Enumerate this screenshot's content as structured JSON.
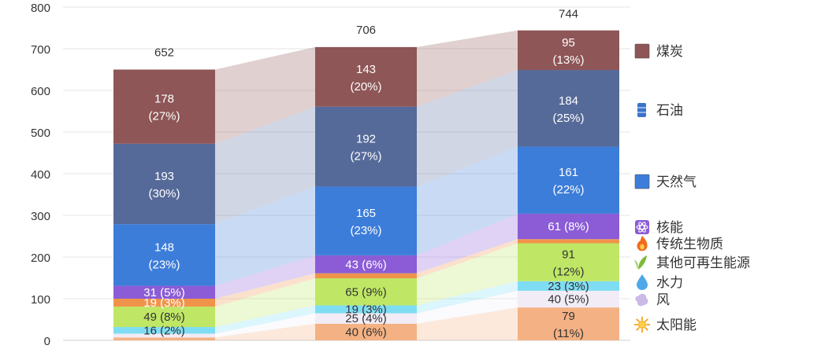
{
  "chart_data": {
    "type": "bar",
    "stacked": true,
    "with_flow_bands": true,
    "ylim": [
      0,
      800
    ],
    "yticks": [
      0,
      100,
      200,
      300,
      400,
      500,
      600,
      700,
      800
    ],
    "categories": [
      "",
      "",
      ""
    ],
    "totals": [
      652,
      706,
      744
    ],
    "series": [
      {
        "name": "太阳能",
        "icon": "sun-icon",
        "color": "#F4B183",
        "values": [
          7,
          40,
          79
        ],
        "labels": [
          "",
          "40 (6%)",
          "79\n(11%)"
        ]
      },
      {
        "name": "风",
        "icon": "wind-icon",
        "color": "#F1ECF6",
        "values": [
          9,
          25,
          40
        ],
        "labels": [
          "",
          "25 (4%)",
          "40 (5%)"
        ]
      },
      {
        "name": "水力",
        "icon": "water-drop-icon",
        "color": "#7FDDF3",
        "values": [
          16,
          19,
          23
        ],
        "labels": [
          "16 (2%)",
          "19 (3%)",
          "23 (3%)"
        ]
      },
      {
        "name": "其他可再生能源",
        "icon": "leaf-icon",
        "color": "#BFE765",
        "values": [
          49,
          65,
          91
        ],
        "labels": [
          "49 (8%)",
          "65 (9%)",
          "91\n(12%)"
        ]
      },
      {
        "name": "传统生物质",
        "icon": "fire-icon",
        "color": "#F0934A",
        "values": [
          19,
          12,
          10
        ],
        "labels": [
          "19 (3%)",
          "",
          ""
        ]
      },
      {
        "name": "核能",
        "icon": "atom-icon",
        "color": "#8B5CD6",
        "values": [
          31,
          43,
          61
        ],
        "labels": [
          "31 (5%)",
          "43 (6%)",
          "61 (8%)"
        ]
      },
      {
        "name": "天然气",
        "icon": "blue-square-icon",
        "color": "#3C7DD9",
        "values": [
          148,
          165,
          161
        ],
        "labels": [
          "148\n(23%)",
          "165\n(23%)",
          "161\n(22%)"
        ]
      },
      {
        "name": "石油",
        "icon": "oil-barrel-icon",
        "color": "#566A99",
        "values": [
          193,
          192,
          184
        ],
        "labels": [
          "193\n(30%)",
          "192\n(27%)",
          "184\n(25%)"
        ]
      },
      {
        "name": "煤炭",
        "icon": "brown-square-icon",
        "color": "#8E5656",
        "values": [
          178,
          143,
          95
        ],
        "labels": [
          "178\n(27%)",
          "143\n(20%)",
          "95\n(13%)"
        ]
      }
    ],
    "colors": {
      "grid": "#E6E6E6",
      "axis": "#D0D0D0",
      "tick_text": "#333333",
      "label_light": "#FFFFFF",
      "label_dark": "#333333"
    }
  }
}
